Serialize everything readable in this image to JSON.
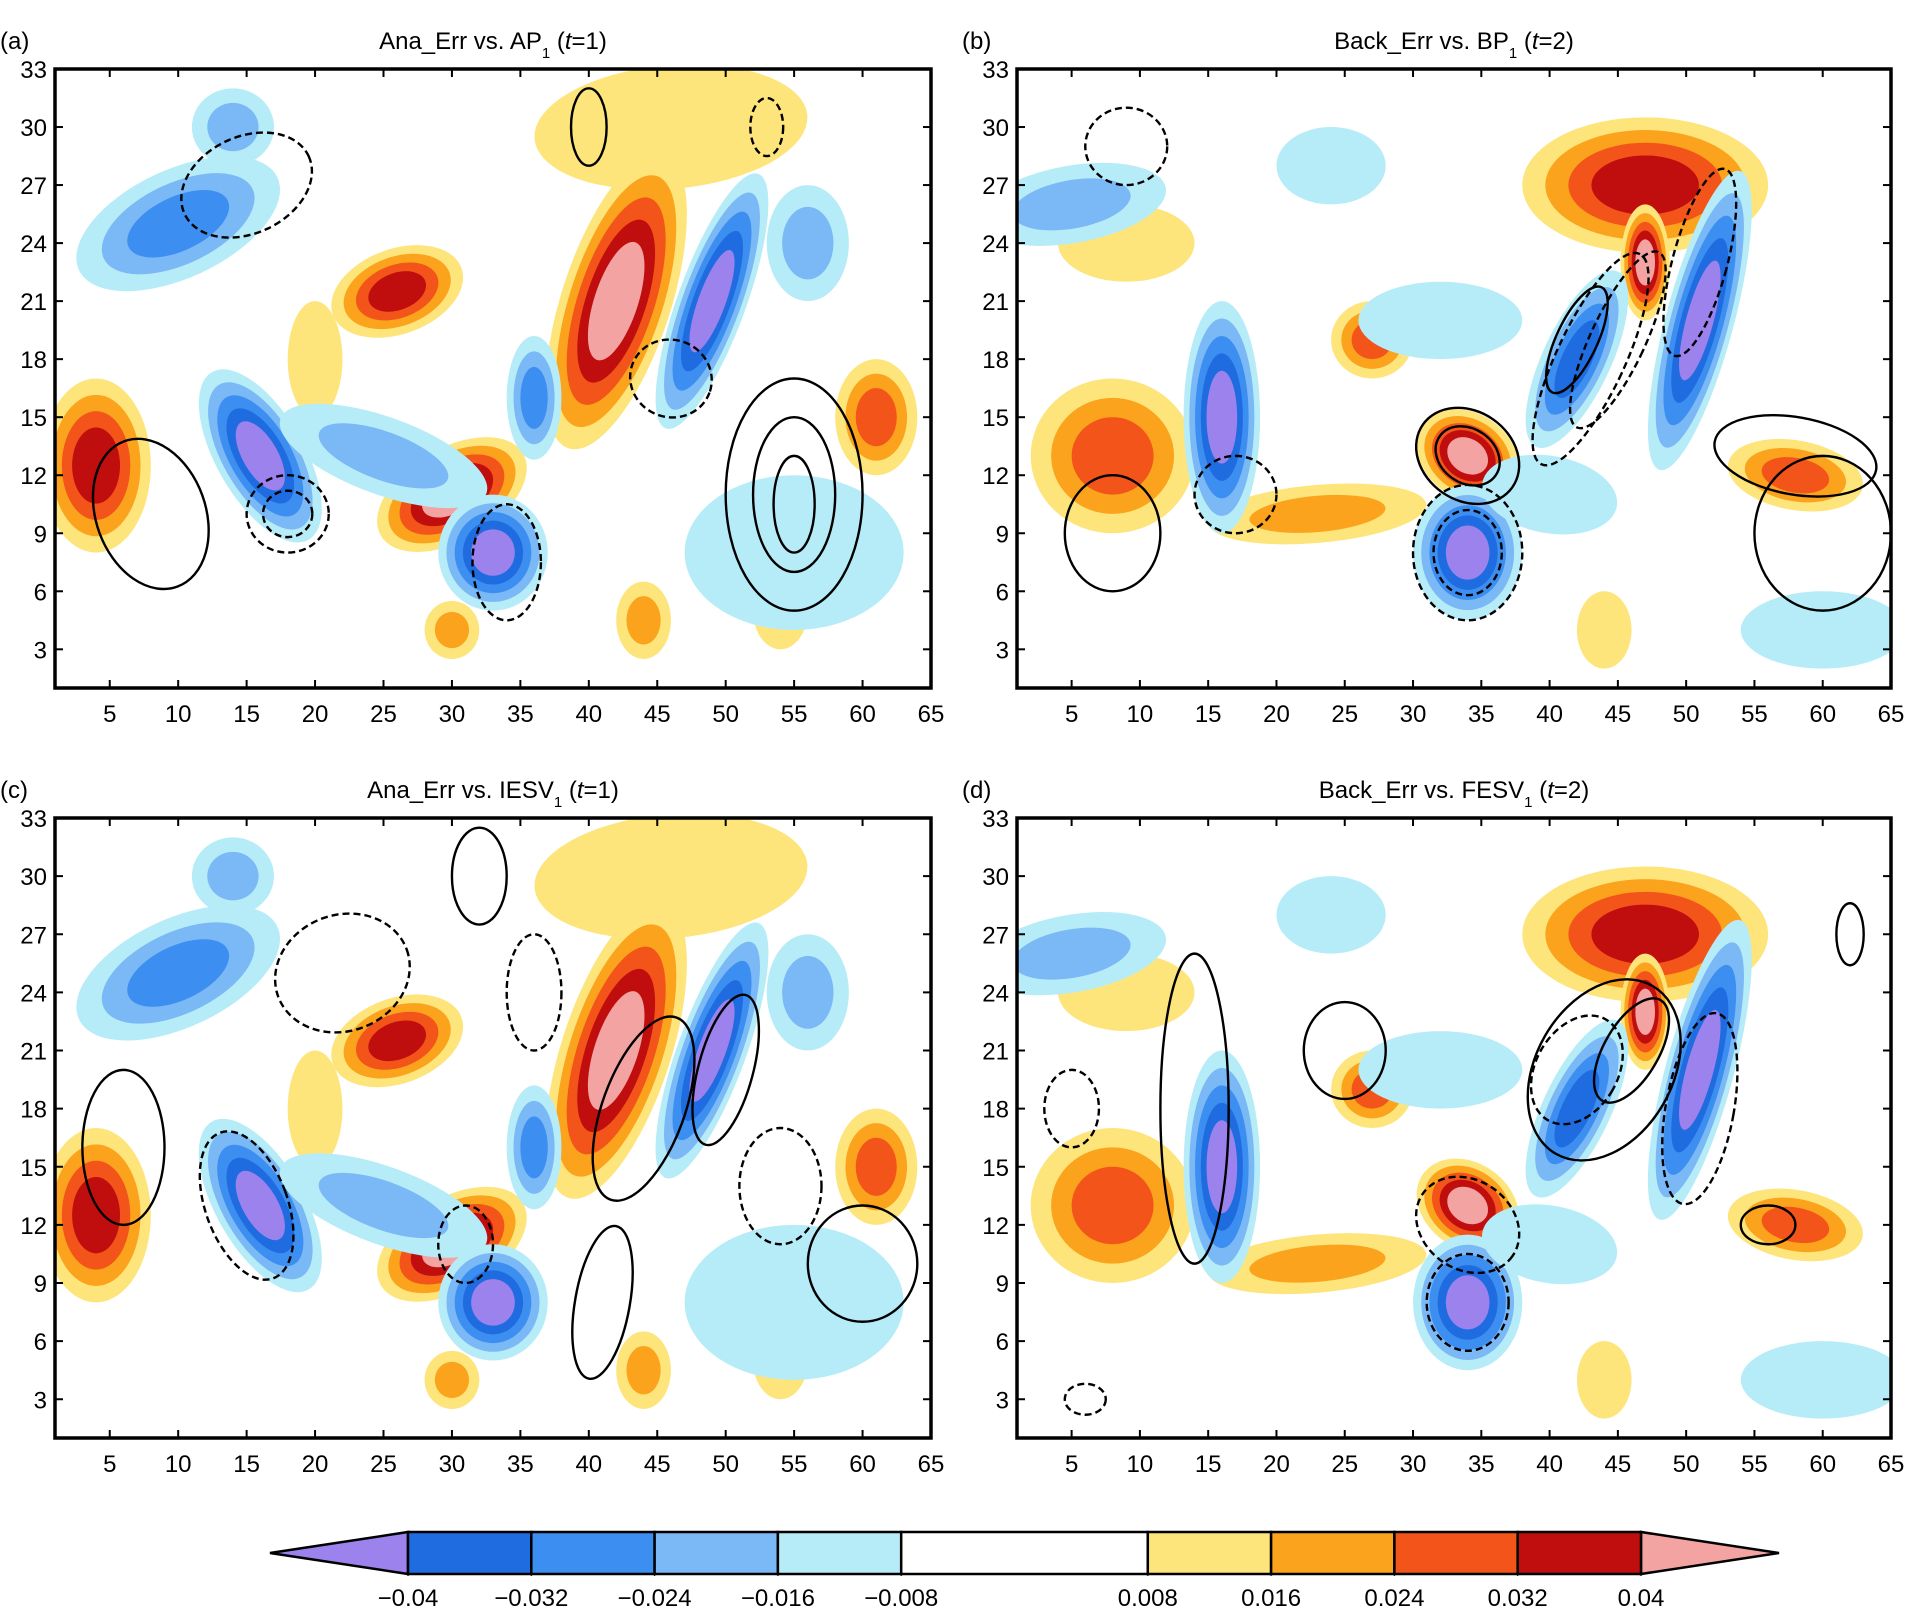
{
  "chart_data": [
    {
      "type": "contour",
      "label": "(a)",
      "title": [
        "Ana_Err vs. AP",
        "1",
        " (",
        "t",
        "=1)"
      ],
      "xlim": [
        1,
        65
      ],
      "ylim": [
        1,
        33
      ],
      "xticks": [
        5,
        10,
        15,
        20,
        25,
        30,
        35,
        40,
        45,
        50,
        55,
        60,
        65
      ],
      "yticks": [
        3,
        6,
        9,
        12,
        15,
        18,
        21,
        24,
        27,
        30,
        33
      ]
    },
    {
      "type": "contour",
      "label": "(b)",
      "title": [
        "Back_Err vs. BP",
        "1",
        " (",
        "t",
        "=2)"
      ],
      "xlim": [
        1,
        65
      ],
      "ylim": [
        1,
        33
      ],
      "xticks": [
        5,
        10,
        15,
        20,
        25,
        30,
        35,
        40,
        45,
        50,
        55,
        60,
        65
      ],
      "yticks": [
        3,
        6,
        9,
        12,
        15,
        18,
        21,
        24,
        27,
        30,
        33
      ]
    },
    {
      "type": "contour",
      "label": "(c)",
      "title": [
        "Ana_Err vs. IESV",
        "1",
        " (",
        "t",
        "=1)"
      ],
      "xlim": [
        1,
        65
      ],
      "ylim": [
        1,
        33
      ],
      "xticks": [
        5,
        10,
        15,
        20,
        25,
        30,
        35,
        40,
        45,
        50,
        55,
        60,
        65
      ],
      "yticks": [
        3,
        6,
        9,
        12,
        15,
        18,
        21,
        24,
        27,
        30,
        33
      ]
    },
    {
      "type": "contour",
      "label": "(d)",
      "title": [
        "Back_Err vs. FESV",
        "1",
        " (",
        "t",
        "=2)"
      ],
      "xlim": [
        1,
        65
      ],
      "ylim": [
        1,
        33
      ],
      "xticks": [
        5,
        10,
        15,
        20,
        25,
        30,
        35,
        40,
        45,
        50,
        55,
        60,
        65
      ],
      "yticks": [
        3,
        6,
        9,
        12,
        15,
        18,
        21,
        24,
        27,
        30,
        33
      ]
    },
    {
      "type": "colorbar",
      "levels": [
        {
          "value": -0.04,
          "label": "−0.04"
        },
        {
          "value": -0.032,
          "label": "−0.032"
        },
        {
          "value": -0.024,
          "label": "−0.024"
        },
        {
          "value": -0.016,
          "label": "−0.016"
        },
        {
          "value": -0.008,
          "label": "−0.008"
        },
        0.008,
        0.016,
        0.024,
        0.032,
        0.04
      ],
      "colors": [
        "#9c82ec",
        "#1f6ce0",
        "#3c8ef0",
        "#7ab8f6",
        "#b6ecf8",
        "#ffffff",
        "#fde57c",
        "#fba31c",
        "#f2541a",
        "#c00d0d",
        "#f4a3a3"
      ]
    }
  ]
}
